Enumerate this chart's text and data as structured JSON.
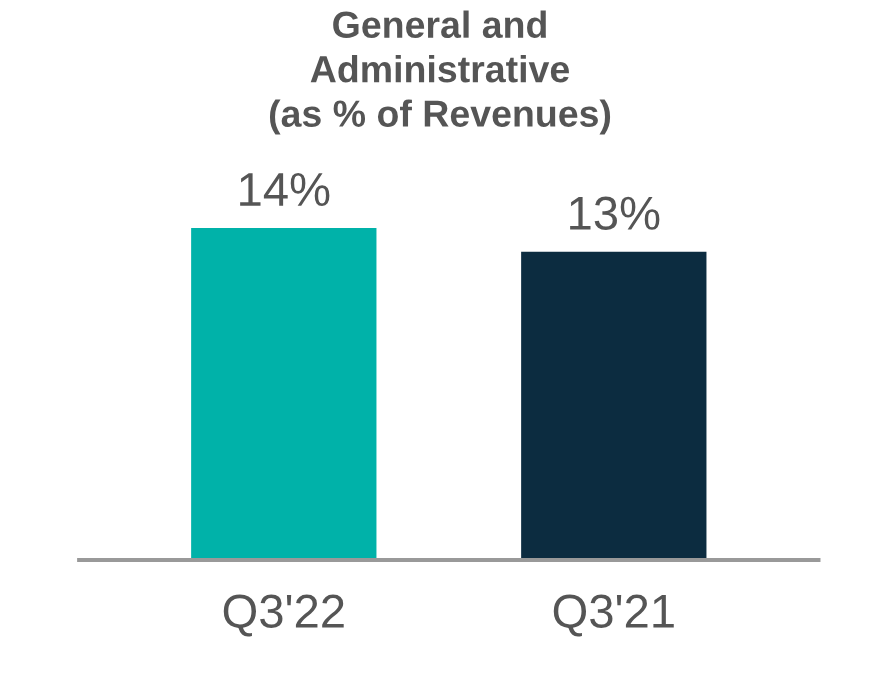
{
  "chart_data": {
    "type": "bar",
    "title": "General and\nAdministrative\n(as % of Revenues)",
    "categories": [
      "Q3'22",
      "Q3'21"
    ],
    "values": [
      14,
      13
    ],
    "colors": [
      "#00b2a9",
      "#0c2c40"
    ],
    "value_labels": [
      "14%",
      "13%"
    ],
    "grid": false,
    "legend": false
  }
}
